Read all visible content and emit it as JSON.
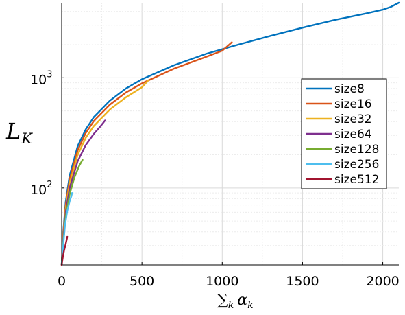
{
  "chart_data": {
    "type": "line",
    "xlabel": "∑",
    "xlabel_sub": "k",
    "xlabel_var": "α",
    "xlabel_var_sub": "k",
    "ylabel": "L",
    "ylabel_sub": "K",
    "xlim": [
      0,
      2100
    ],
    "ylim": [
      20,
      4800
    ],
    "yscale": "log",
    "grid": true,
    "legend": "right",
    "x_ticks": [
      {
        "value": 0,
        "label": "0"
      },
      {
        "value": 500,
        "label": "500"
      },
      {
        "value": 1000,
        "label": "1000"
      },
      {
        "value": 1500,
        "label": "1500"
      },
      {
        "value": 2000,
        "label": "2000"
      }
    ],
    "y_ticks": [
      {
        "value": 100,
        "base": "10",
        "exp": "2"
      },
      {
        "value": 1000,
        "base": "10",
        "exp": "3"
      }
    ],
    "series": [
      {
        "name": "size8",
        "color": "#0072bd",
        "x": [
          0,
          10,
          25,
          50,
          100,
          150,
          200,
          300,
          400,
          500,
          700,
          900,
          1100,
          1300,
          1500,
          1700,
          1900,
          2000,
          2050,
          2100
        ],
        "y": [
          20,
          40,
          75,
          130,
          240,
          340,
          440,
          620,
          800,
          970,
          1300,
          1650,
          2000,
          2400,
          2850,
          3350,
          3850,
          4150,
          4400,
          4800
        ]
      },
      {
        "name": "size16",
        "color": "#d95319",
        "x": [
          0,
          10,
          25,
          50,
          100,
          150,
          200,
          300,
          400,
          500,
          700,
          900,
          1000,
          1060
        ],
        "y": [
          20,
          38,
          70,
          120,
          220,
          315,
          405,
          570,
          735,
          890,
          1210,
          1550,
          1760,
          2100
        ]
      },
      {
        "name": "size32",
        "color": "#edb120",
        "x": [
          0,
          10,
          25,
          50,
          100,
          150,
          200,
          300,
          400,
          500,
          540
        ],
        "y": [
          20,
          36,
          65,
          110,
          200,
          285,
          365,
          515,
          665,
          820,
          950
        ]
      },
      {
        "name": "size64",
        "color": "#7e2f8e",
        "x": [
          0,
          10,
          25,
          50,
          100,
          150,
          200,
          240,
          270
        ],
        "y": [
          20,
          34,
          60,
          100,
          175,
          245,
          310,
          360,
          410
        ]
      },
      {
        "name": "size128",
        "color": "#77ac30",
        "x": [
          0,
          10,
          25,
          50,
          80,
          110,
          130
        ],
        "y": [
          20,
          32,
          55,
          88,
          125,
          160,
          180
        ]
      },
      {
        "name": "size256",
        "color": "#4dbeee",
        "x": [
          0,
          10,
          20,
          35,
          50,
          60,
          65
        ],
        "y": [
          20,
          30,
          45,
          62,
          76,
          84,
          90
        ]
      },
      {
        "name": "size512",
        "color": "#a2142f",
        "x": [
          0,
          8,
          15,
          25,
          35
        ],
        "y": [
          20,
          24,
          27,
          31,
          36
        ]
      }
    ]
  }
}
